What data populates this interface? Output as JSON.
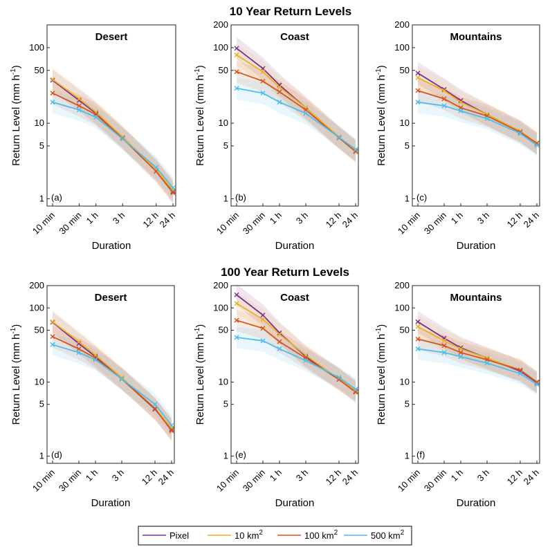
{
  "figure": {
    "row_titles": [
      "10 Year Return Levels",
      "100 Year Return Levels"
    ]
  },
  "legend": {
    "entries": [
      {
        "label": "Pixel",
        "sup": "",
        "color": "#7E2F8E"
      },
      {
        "label": "10 km",
        "sup": "2",
        "color": "#EDB120"
      },
      {
        "label": "100 km",
        "sup": "2",
        "color": "#D95319"
      },
      {
        "label": "500 km",
        "sup": "2",
        "color": "#4DBEEE"
      }
    ]
  },
  "chart_data": [
    {
      "type": "line",
      "row_title": "10 Year Return Levels",
      "title": "Desert",
      "panel_label": "(a)",
      "xlabel": "Duration",
      "ylabel": "Return Level (mm h",
      "ylabel_sup": "-1",
      "ylabel_end": ")",
      "x_hours": [
        0.1667,
        0.5,
        1,
        3,
        12,
        24
      ],
      "x_ticklabels": [
        "10 min",
        "30 min",
        "1 h",
        "3 h",
        "12 h",
        "24 h"
      ],
      "yscale": "log",
      "ylim": [
        0.8,
        200
      ],
      "y_ticks": [
        1,
        5,
        10,
        50,
        100
      ],
      "grid": false,
      "series": [
        {
          "name": "Pixel",
          "values": [
            37,
            20,
            13.5,
            6.5,
            2.4,
            1.25
          ]
        },
        {
          "name": "10 km2",
          "values": [
            38,
            21,
            14,
            6.6,
            2.4,
            1.3
          ]
        },
        {
          "name": "100 km2",
          "values": [
            25,
            17,
            13,
            6.3,
            2.3,
            1.2
          ]
        },
        {
          "name": "500 km2",
          "values": [
            19,
            15,
            12,
            6.2,
            2.6,
            1.4
          ]
        }
      ]
    },
    {
      "type": "line",
      "row_title": "10 Year Return Levels",
      "title": "Coast",
      "panel_label": "(b)",
      "xlabel": "Duration",
      "ylabel": "Return Level (mm h",
      "ylabel_sup": "-1",
      "ylabel_end": ")",
      "x_hours": [
        0.1667,
        0.5,
        1,
        3,
        12,
        24
      ],
      "x_ticklabels": [
        "10 min",
        "30 min",
        "1 h",
        "3 h",
        "12 h",
        "24 h"
      ],
      "yscale": "log",
      "ylim": [
        0.8,
        200
      ],
      "y_ticks": [
        1,
        5,
        10,
        50,
        100,
        200
      ],
      "grid": false,
      "series": [
        {
          "name": "Pixel",
          "values": [
            98,
            53,
            32,
            16,
            6.5,
            4.3
          ]
        },
        {
          "name": "10 km2",
          "values": [
            80,
            48,
            30,
            16,
            6.6,
            4.3
          ]
        },
        {
          "name": "100 km2",
          "values": [
            48,
            36,
            26,
            15,
            6.4,
            4.2
          ]
        },
        {
          "name": "500 km2",
          "values": [
            29,
            25,
            19,
            13.5,
            6.5,
            4.5
          ]
        }
      ]
    },
    {
      "type": "line",
      "row_title": "10 Year Return Levels",
      "title": "Mountains",
      "panel_label": "(c)",
      "xlabel": "Duration",
      "ylabel": "Return Level (mm h",
      "ylabel_sup": "-1",
      "ylabel_end": ")",
      "x_hours": [
        0.1667,
        0.5,
        1,
        3,
        12,
        24
      ],
      "x_ticklabels": [
        "10 min",
        "30 min",
        "1 h",
        "3 h",
        "12 h",
        "24 h"
      ],
      "yscale": "log",
      "ylim": [
        0.8,
        200
      ],
      "y_ticks": [
        1,
        5,
        10,
        50,
        100,
        200
      ],
      "grid": false,
      "series": [
        {
          "name": "Pixel",
          "values": [
            46,
            28,
            20,
            13,
            7.8,
            5.4
          ]
        },
        {
          "name": "10 km2",
          "values": [
            40,
            27,
            19,
            13,
            7.8,
            5.5
          ]
        },
        {
          "name": "100 km2",
          "values": [
            27,
            21,
            16,
            12.5,
            7.6,
            5.4
          ]
        },
        {
          "name": "500 km2",
          "values": [
            19,
            17,
            14.5,
            11.5,
            7.3,
            5.1
          ]
        }
      ]
    },
    {
      "type": "line",
      "row_title": "100 Year Return Levels",
      "title": "Desert",
      "panel_label": "(d)",
      "xlabel": "Duration",
      "ylabel": "Return Level (mm h",
      "ylabel_sup": "-1",
      "ylabel_end": ")",
      "x_hours": [
        0.1667,
        0.5,
        1,
        3,
        12,
        24
      ],
      "x_ticklabels": [
        "10 min",
        "30 min",
        "1 h",
        "3 h",
        "12 h",
        "24 h"
      ],
      "yscale": "log",
      "ylim": [
        0.8,
        200
      ],
      "y_ticks": [
        1,
        5,
        10,
        50,
        100,
        200
      ],
      "grid": false,
      "series": [
        {
          "name": "Pixel",
          "values": [
            64,
            33,
            22,
            11,
            4.3,
            2.3
          ]
        },
        {
          "name": "10 km2",
          "values": [
            65,
            35,
            23,
            11.5,
            4.4,
            2.4
          ]
        },
        {
          "name": "100 km2",
          "values": [
            41,
            28,
            21,
            11,
            4.4,
            2.2
          ]
        },
        {
          "name": "500 km2",
          "values": [
            32,
            25,
            20,
            11,
            5,
            2.6
          ]
        }
      ]
    },
    {
      "type": "line",
      "row_title": "100 Year Return Levels",
      "title": "Coast",
      "panel_label": "(e)",
      "xlabel": "Duration",
      "ylabel": "Return Level (mm h",
      "ylabel_sup": "-1",
      "ylabel_end": ")",
      "x_hours": [
        0.1667,
        0.5,
        1,
        3,
        12,
        24
      ],
      "x_ticklabels": [
        "10 min",
        "30 min",
        "1 h",
        "3 h",
        "12 h",
        "24 h"
      ],
      "yscale": "log",
      "ylim": [
        0.8,
        200
      ],
      "y_ticks": [
        1,
        5,
        10,
        50,
        100,
        200
      ],
      "grid": false,
      "series": [
        {
          "name": "Pixel",
          "values": [
            150,
            80,
            46,
            22,
            11,
            7.5
          ]
        },
        {
          "name": "10 km2",
          "values": [
            115,
            70,
            44,
            23,
            11,
            7.7
          ]
        },
        {
          "name": "100 km2",
          "values": [
            68,
            53,
            35,
            21,
            10.8,
            7.3
          ]
        },
        {
          "name": "500 km2",
          "values": [
            40,
            36,
            28,
            19.5,
            11.5,
            8
          ]
        }
      ]
    },
    {
      "type": "line",
      "row_title": "100 Year Return Levels",
      "title": "Mountains",
      "panel_label": "(f)",
      "xlabel": "Duration",
      "ylabel": "Return Level (mm h",
      "ylabel_sup": "-1",
      "ylabel_end": ")",
      "x_hours": [
        0.1667,
        0.5,
        1,
        3,
        12,
        24
      ],
      "x_ticklabels": [
        "10 min",
        "30 min",
        "1 h",
        "3 h",
        "12 h",
        "24 h"
      ],
      "yscale": "log",
      "ylim": [
        0.8,
        200
      ],
      "y_ticks": [
        1,
        5,
        10,
        50,
        100,
        200
      ],
      "grid": false,
      "series": [
        {
          "name": "Pixel",
          "values": [
            65,
            39,
            29,
            21,
            14,
            9.8
          ]
        },
        {
          "name": "10 km2",
          "values": [
            56,
            36,
            28,
            21,
            14.5,
            10
          ]
        },
        {
          "name": "100 km2",
          "values": [
            38,
            31,
            25,
            20,
            14.5,
            10
          ]
        },
        {
          "name": "500 km2",
          "values": [
            28,
            25,
            22,
            18,
            13,
            9.3
          ]
        }
      ]
    }
  ]
}
